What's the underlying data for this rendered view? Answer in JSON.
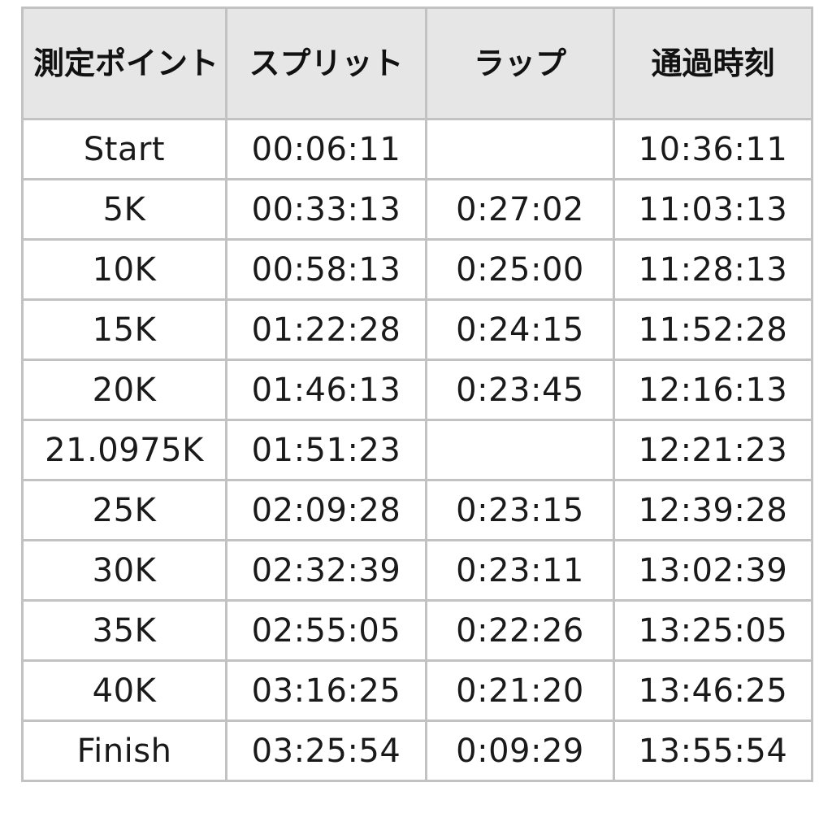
{
  "table": {
    "headers": [
      "測定ポイント",
      "スプリット",
      "ラップ",
      "通過時刻"
    ],
    "rows": [
      {
        "point": "Start",
        "split": "00:06:11",
        "lap": "",
        "time": "10:36:11"
      },
      {
        "point": "5K",
        "split": "00:33:13",
        "lap": "0:27:02",
        "time": "11:03:13"
      },
      {
        "point": "10K",
        "split": "00:58:13",
        "lap": "0:25:00",
        "time": "11:28:13"
      },
      {
        "point": "15K",
        "split": "01:22:28",
        "lap": "0:24:15",
        "time": "11:52:28"
      },
      {
        "point": "20K",
        "split": "01:46:13",
        "lap": "0:23:45",
        "time": "12:16:13"
      },
      {
        "point": "21.0975K",
        "split": "01:51:23",
        "lap": "",
        "time": "12:21:23"
      },
      {
        "point": "25K",
        "split": "02:09:28",
        "lap": "0:23:15",
        "time": "12:39:28"
      },
      {
        "point": "30K",
        "split": "02:32:39",
        "lap": "0:23:11",
        "time": "13:02:39"
      },
      {
        "point": "35K",
        "split": "02:55:05",
        "lap": "0:22:26",
        "time": "13:25:05"
      },
      {
        "point": "40K",
        "split": "03:16:25",
        "lap": "0:21:20",
        "time": "13:46:25"
      },
      {
        "point": "Finish",
        "split": "03:25:54",
        "lap": "0:09:29",
        "time": "13:55:54"
      }
    ]
  },
  "colors": {
    "header_bg": "#e6e6e6",
    "border": "#c2c2c2",
    "text": "#1a1a1a"
  }
}
